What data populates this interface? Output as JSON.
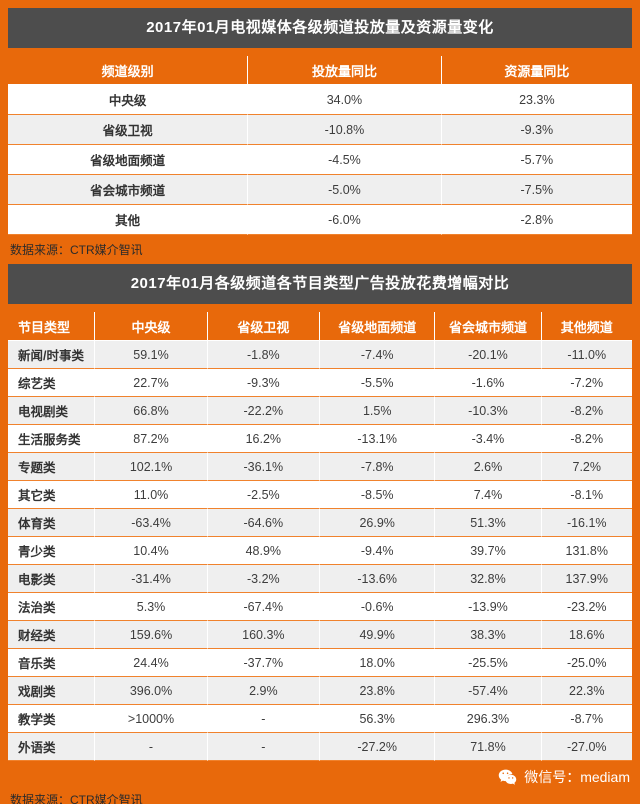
{
  "theme": {
    "accent_orange": "#E8690B",
    "title_bar_gray": "#4D4D4D",
    "stripe_gray": "#EFEFEF",
    "text_dark": "#333333",
    "white": "#FFFFFF"
  },
  "chart_data": [
    {
      "type": "table",
      "title": "2017年01月电视媒体各级频道投放量及资源量变化",
      "columns": [
        "频道级别",
        "投放量同比",
        "资源量同比"
      ],
      "rows": [
        [
          "中央级",
          "34.0%",
          "23.3%"
        ],
        [
          "省级卫视",
          "-10.8%",
          "-9.3%"
        ],
        [
          "省级地面频道",
          "-4.5%",
          "-5.7%"
        ],
        [
          "省会城市频道",
          "-5.0%",
          "-7.5%"
        ],
        [
          "其他",
          "-6.0%",
          "-2.8%"
        ]
      ],
      "source": "数据来源：CTR媒介智讯"
    },
    {
      "type": "table",
      "title": "2017年01月各级频道各节目类型广告投放花费增幅对比",
      "columns": [
        "节目类型",
        "中央级",
        "省级卫视",
        "省级地面频道",
        "省会城市频道",
        "其他频道"
      ],
      "rows": [
        [
          "新闻/时事类",
          "59.1%",
          "-1.8%",
          "-7.4%",
          "-20.1%",
          "-11.0%"
        ],
        [
          "综艺类",
          "22.7%",
          "-9.3%",
          "-5.5%",
          "-1.6%",
          "-7.2%"
        ],
        [
          "电视剧类",
          "66.8%",
          "-22.2%",
          "1.5%",
          "-10.3%",
          "-8.2%"
        ],
        [
          "生活服务类",
          "87.2%",
          "16.2%",
          "-13.1%",
          "-3.4%",
          "-8.2%"
        ],
        [
          "专题类",
          "102.1%",
          "-36.1%",
          "-7.8%",
          "2.6%",
          "7.2%"
        ],
        [
          "其它类",
          "11.0%",
          "-2.5%",
          "-8.5%",
          "7.4%",
          "-8.1%"
        ],
        [
          "体育类",
          "-63.4%",
          "-64.6%",
          "26.9%",
          "51.3%",
          "-16.1%"
        ],
        [
          "青少类",
          "10.4%",
          "48.9%",
          "-9.4%",
          "39.7%",
          "131.8%"
        ],
        [
          "电影类",
          "-31.4%",
          "-3.2%",
          "-13.6%",
          "32.8%",
          "137.9%"
        ],
        [
          "法治类",
          "5.3%",
          "-67.4%",
          "-0.6%",
          "-13.9%",
          "-23.2%"
        ],
        [
          "财经类",
          "159.6%",
          "160.3%",
          "49.9%",
          "38.3%",
          "18.6%"
        ],
        [
          "音乐类",
          "24.4%",
          "-37.7%",
          "18.0%",
          "-25.5%",
          "-25.0%"
        ],
        [
          "戏剧类",
          "396.0%",
          "2.9%",
          "23.8%",
          "-57.4%",
          "22.3%"
        ],
        [
          "教学类",
          ">1000%",
          "-",
          "56.3%",
          "296.3%",
          "-8.7%"
        ],
        [
          "外语类",
          "-",
          "-",
          "-27.2%",
          "71.8%",
          "-27.0%"
        ]
      ],
      "source": "数据来源：CTR媒介智讯"
    }
  ],
  "footer": {
    "wechat_label": "微信号：mediam",
    "wechat_icon": "wechat-icon"
  }
}
